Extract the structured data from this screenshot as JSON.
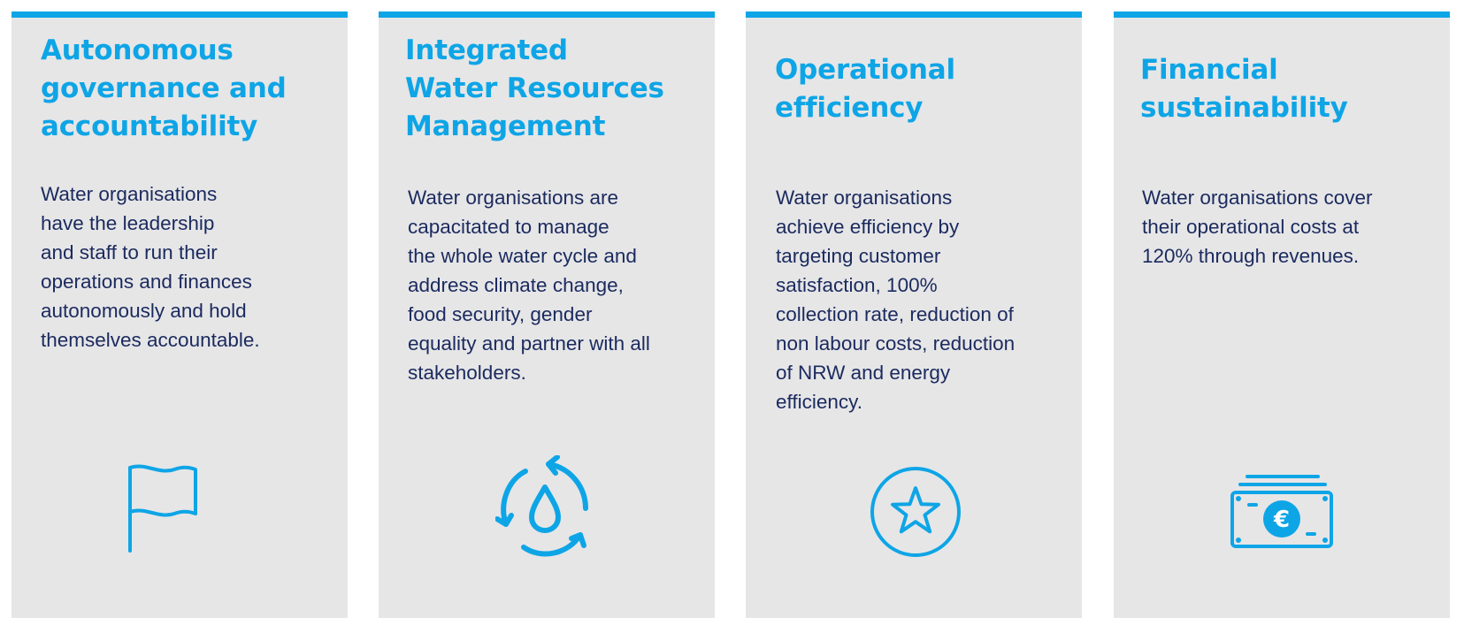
{
  "cards": [
    {
      "title": "Autonomous\ngovernance and\naccountability",
      "body": "Water organisations\nhave the leadership\nand staff to run their\noperations and finances\nautonomously and hold\nthemselves accountable.",
      "icon": "flag-icon"
    },
    {
      "title": "Integrated\nWater Resources\nManagement",
      "body": "Water organisations are\ncapacitated to manage\nthe whole water cycle and\naddress climate change,\nfood security, gender\nequality and partner with all\nstakeholders.",
      "icon": "water-cycle-icon"
    },
    {
      "title": "Operational\nefficiency",
      "body": "Water organisations\nachieve efficiency by\ntargeting customer\nsatisfaction, 100%\ncollection rate, reduction of\nnon labour costs, reduction\nof NRW and energy\nefficiency.",
      "icon": "star-icon"
    },
    {
      "title": "Financial\nsustainability",
      "body": "Water organisations cover\ntheir operational costs at\n120% through revenues.",
      "icon": "euro-banknote-icon"
    }
  ],
  "colors": {
    "accent": "#0ea5e6",
    "card_background": "#e6e6e7",
    "body_text": "#1b2a5e"
  }
}
